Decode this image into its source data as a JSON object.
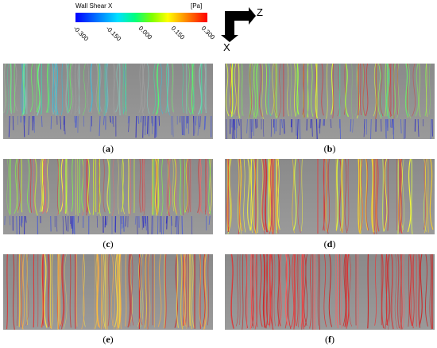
{
  "legend": {
    "title": "Wall Shear X",
    "unit": "[Pa]",
    "ticks": [
      "-0.300",
      "-0.150",
      "0.000",
      "0.150",
      "0.300"
    ]
  },
  "axes": {
    "z_label": "Z",
    "x_label": "X"
  },
  "panels": [
    {
      "id": "a",
      "caption_open": "(",
      "caption_letter": "a",
      "caption_close": ")"
    },
    {
      "id": "b",
      "caption_open": "(",
      "caption_letter": "b",
      "caption_close": ")"
    },
    {
      "id": "c",
      "caption_open": "(",
      "caption_letter": "c",
      "caption_close": ")"
    },
    {
      "id": "d",
      "caption_open": "(",
      "caption_letter": "d",
      "caption_close": ")"
    },
    {
      "id": "e",
      "caption_open": "(",
      "caption_letter": "e",
      "caption_close": ")"
    },
    {
      "id": "f",
      "caption_open": "(",
      "caption_letter": "f",
      "caption_close": ")"
    }
  ],
  "colors": {
    "background": "#ffffff",
    "panel_grey": "#8f8f8f",
    "min": "#0000ff",
    "mid": "#00ff80",
    "max": "#ff0000"
  }
}
